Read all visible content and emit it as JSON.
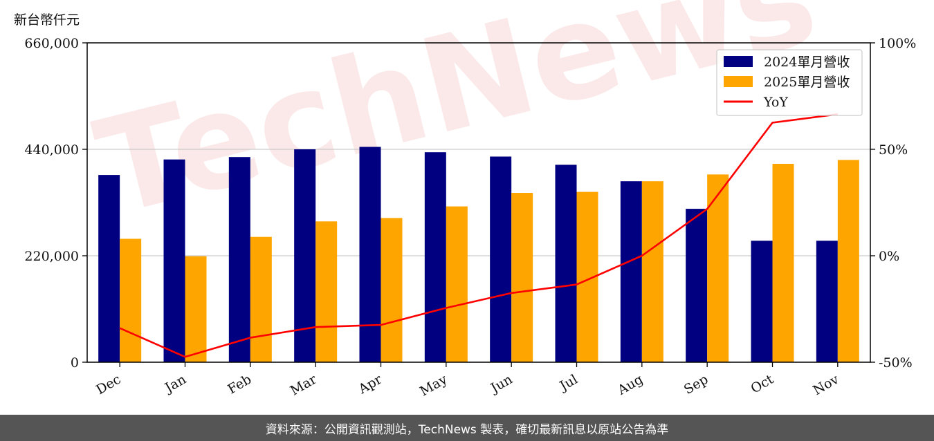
{
  "unit_label": "新台幣仟元",
  "footer_text": "資料來源：公開資訊觀測站，TechNews 製表，確切最新訊息以原站公告為準",
  "watermark": "TechNews",
  "chart_data": {
    "type": "bar",
    "categories": [
      "Dec",
      "Jan",
      "Feb",
      "Mar",
      "Apr",
      "May",
      "Jun",
      "Jul",
      "Aug",
      "Sep",
      "Oct",
      "Nov"
    ],
    "series": [
      {
        "name": "2024單月營收",
        "type": "bar",
        "axis": "left",
        "color": "#000080",
        "values": [
          387000,
          419000,
          424000,
          440000,
          445000,
          434000,
          425000,
          408000,
          374000,
          317000,
          251000,
          251000
        ]
      },
      {
        "name": "2025單月營收",
        "type": "bar",
        "axis": "left",
        "color": "#FFA500",
        "values": [
          255000,
          219000,
          259000,
          291000,
          298000,
          322000,
          350000,
          352000,
          374000,
          388000,
          410000,
          418000
        ]
      },
      {
        "name": "YoY",
        "type": "line",
        "axis": "right",
        "color": "#FF0000",
        "values": [
          -34,
          -47.5,
          -38.5,
          -33.5,
          -32.5,
          -24.5,
          -17.5,
          -13.5,
          0,
          22,
          62.5,
          66.5
        ]
      }
    ],
    "y_left": {
      "min": 0,
      "max": 660000,
      "ticks": [
        0,
        220000,
        440000,
        660000
      ],
      "tick_labels": [
        "0",
        "220,000",
        "440,000",
        "660,000"
      ]
    },
    "y_right": {
      "min": -50,
      "max": 100,
      "ticks": [
        -50,
        0,
        50,
        100
      ],
      "tick_labels": [
        "-50%",
        "0%",
        "50%",
        "100%"
      ]
    },
    "grid": true,
    "legend": "top-right"
  }
}
